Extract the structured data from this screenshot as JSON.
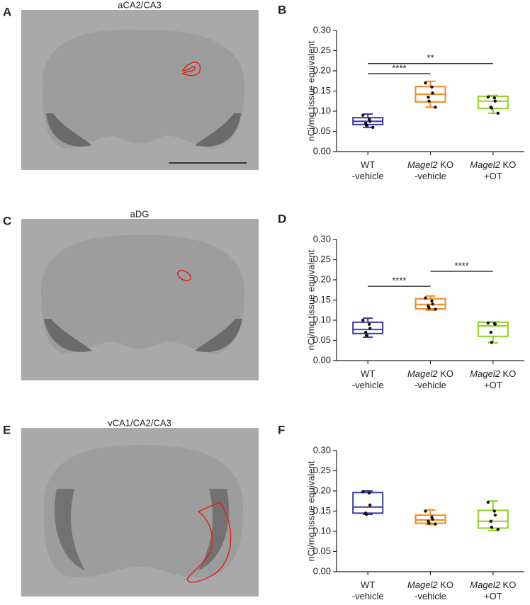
{
  "panels": [
    {
      "label": "A",
      "title": "aCA2/CA3"
    },
    {
      "label": "C",
      "title": "aDG"
    },
    {
      "label": "E",
      "title": "vCA1/CA2/CA3"
    }
  ],
  "chart_data": [
    {
      "type": "box",
      "panel_label": "B",
      "y_label": "nCi/mg tissue equivalent",
      "categories": [
        [
          [
            {
              "text": "WT",
              "italic": false
            }
          ],
          [
            {
              "text": "-vehicle",
              "italic": false
            }
          ]
        ],
        [
          [
            {
              "text": "Magel2",
              "italic": true
            },
            {
              "text": " KO",
              "italic": false
            }
          ],
          [
            {
              "text": "-vehicle",
              "italic": false
            }
          ]
        ],
        [
          [
            {
              "text": "Magel2",
              "italic": true
            },
            {
              "text": " KO",
              "italic": false
            }
          ],
          [
            {
              "text": "+OT",
              "italic": false
            }
          ]
        ]
      ],
      "ylim": [
        0,
        0.3
      ],
      "yticks": [
        {
          "value": 0,
          "label": "0.00"
        },
        {
          "value": 0.05,
          "label": "0.05"
        },
        {
          "value": 0.1,
          "label": "0.10"
        },
        {
          "value": 0.15,
          "label": "0.15"
        },
        {
          "value": 0.2,
          "label": "0.20"
        },
        {
          "value": 0.25,
          "label": "0.25"
        },
        {
          "value": 0.3,
          "label": "0.30"
        }
      ],
      "series": [
        {
          "color": "#3b3ba0",
          "whisker_low": 0.06,
          "q1": 0.067,
          "median": 0.075,
          "q3": 0.084,
          "whisker_high": 0.093,
          "points": [
            0.09,
            0.08,
            0.075,
            0.07,
            0.065,
            0.06
          ]
        },
        {
          "color": "#f08a1c",
          "whisker_low": 0.11,
          "q1": 0.123,
          "median": 0.142,
          "q3": 0.161,
          "whisker_high": 0.174,
          "points": [
            0.17,
            0.16,
            0.145,
            0.135,
            0.125,
            0.11
          ]
        },
        {
          "color": "#8fd11f",
          "whisker_low": 0.095,
          "q1": 0.107,
          "median": 0.125,
          "q3": 0.137,
          "whisker_high": 0.139,
          "points": [
            0.135,
            0.133,
            0.125,
            0.11,
            0.108,
            0.095
          ]
        }
      ],
      "annotations": [
        {
          "text": "****",
          "from": 0,
          "to": 1,
          "y": 0.193
        },
        {
          "text": "**",
          "from": 0,
          "to": 2,
          "y": 0.218
        }
      ]
    },
    {
      "type": "box",
      "panel_label": "D",
      "y_label": "nCi/mg tissue equivalent",
      "categories": [
        [
          [
            {
              "text": "WT",
              "italic": false
            }
          ],
          [
            {
              "text": "-vehicle",
              "italic": false
            }
          ]
        ],
        [
          [
            {
              "text": "Magel2",
              "italic": true
            },
            {
              "text": " KO",
              "italic": false
            }
          ],
          [
            {
              "text": "-vehicle",
              "italic": false
            }
          ]
        ],
        [
          [
            {
              "text": "Magel2",
              "italic": true
            },
            {
              "text": " KO",
              "italic": false
            }
          ],
          [
            {
              "text": "+OT",
              "italic": false
            }
          ]
        ]
      ],
      "ylim": [
        0,
        0.3
      ],
      "yticks": [
        {
          "value": 0,
          "label": "0.00"
        },
        {
          "value": 0.05,
          "label": "0.05"
        },
        {
          "value": 0.1,
          "label": "0.10"
        },
        {
          "value": 0.15,
          "label": "0.15"
        },
        {
          "value": 0.2,
          "label": "0.20"
        },
        {
          "value": 0.25,
          "label": "0.25"
        },
        {
          "value": 0.3,
          "label": "0.30"
        }
      ],
      "series": [
        {
          "color": "#3b3ba0",
          "whisker_low": 0.058,
          "q1": 0.067,
          "median": 0.077,
          "q3": 0.095,
          "whisker_high": 0.105,
          "points": [
            0.1,
            0.09,
            0.08,
            0.07,
            0.062
          ]
        },
        {
          "color": "#f08a1c",
          "whisker_low": 0.125,
          "q1": 0.128,
          "median": 0.139,
          "q3": 0.153,
          "whisker_high": 0.16,
          "points": [
            0.155,
            0.148,
            0.14,
            0.135,
            0.13,
            0.127
          ]
        },
        {
          "color": "#8fd11f",
          "whisker_low": 0.044,
          "q1": 0.06,
          "median": 0.086,
          "q3": 0.095,
          "whisker_high": 0.096,
          "points": [
            0.093,
            0.092,
            0.09,
            0.07,
            0.045
          ]
        }
      ],
      "annotations": [
        {
          "text": "****",
          "from": 0,
          "to": 1,
          "y": 0.184
        },
        {
          "text": "****",
          "from": 1,
          "to": 2,
          "y": 0.221
        }
      ]
    },
    {
      "type": "box",
      "panel_label": "F",
      "y_label": "nCi/mg tissue equivalent",
      "categories": [
        [
          [
            {
              "text": "WT",
              "italic": false
            }
          ],
          [
            {
              "text": "-vehicle",
              "italic": false
            }
          ]
        ],
        [
          [
            {
              "text": "Magel2",
              "italic": true
            },
            {
              "text": " KO",
              "italic": false
            }
          ],
          [
            {
              "text": "-vehicle",
              "italic": false
            }
          ]
        ],
        [
          [
            {
              "text": "Magel2",
              "italic": true
            },
            {
              "text": " KO",
              "italic": false
            }
          ],
          [
            {
              "text": "+OT",
              "italic": false
            }
          ]
        ]
      ],
      "ylim": [
        0,
        0.3
      ],
      "yticks": [
        {
          "value": 0,
          "label": "0.00"
        },
        {
          "value": 0.05,
          "label": "0.05"
        },
        {
          "value": 0.1,
          "label": "0.10"
        },
        {
          "value": 0.15,
          "label": "0.15"
        },
        {
          "value": 0.2,
          "label": "0.20"
        },
        {
          "value": 0.25,
          "label": "0.25"
        },
        {
          "value": 0.3,
          "label": "0.30"
        }
      ],
      "series": [
        {
          "color": "#3b3ba0",
          "whisker_low": 0.142,
          "q1": 0.145,
          "median": 0.16,
          "q3": 0.196,
          "whisker_high": 0.2,
          "points": [
            0.198,
            0.195,
            0.165,
            0.145,
            0.142
          ]
        },
        {
          "color": "#f08a1c",
          "whisker_low": 0.117,
          "q1": 0.12,
          "median": 0.128,
          "q3": 0.14,
          "whisker_high": 0.153,
          "points": [
            0.15,
            0.135,
            0.13,
            0.125,
            0.12,
            0.118
          ]
        },
        {
          "color": "#8fd11f",
          "whisker_low": 0.102,
          "q1": 0.108,
          "median": 0.125,
          "q3": 0.152,
          "whisker_high": 0.175,
          "points": [
            0.172,
            0.15,
            0.14,
            0.125,
            0.11,
            0.105
          ]
        }
      ],
      "annotations": []
    }
  ]
}
